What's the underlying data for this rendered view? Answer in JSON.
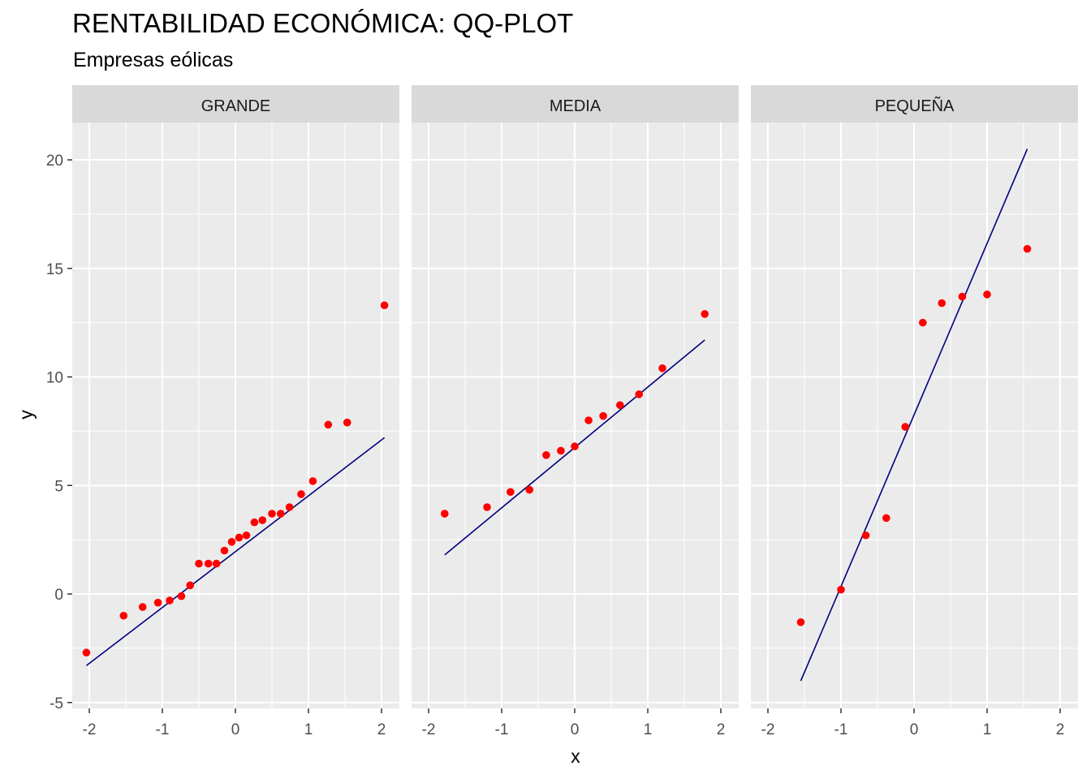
{
  "title": "RENTABILIDAD ECONÓMICA: QQ-PLOT",
  "subtitle": "Empresas eólicas",
  "colors": {
    "point": "#ff0000",
    "line": "#000080",
    "panel_bg": "#ebebeb",
    "strip_bg": "#d9d9d9",
    "grid": "#ffffff"
  },
  "chart_data": {
    "type": "scatter",
    "title": "RENTABILIDAD ECONÓMICA: QQ-PLOT",
    "subtitle": "Empresas eólicas",
    "xlabel": "x",
    "ylabel": "y",
    "grid": true,
    "shared_y": true,
    "x_ticks": [
      -2,
      -1,
      0,
      1,
      2
    ],
    "y_ticks": [
      -5,
      0,
      5,
      10,
      15,
      20
    ],
    "xlim": [
      -2.2,
      2.2
    ],
    "ylim": [
      -5.3,
      22.0
    ],
    "panels": [
      {
        "name": "GRANDE",
        "x": [
          -2.04,
          -1.53,
          -1.27,
          -1.06,
          -0.9,
          -0.74,
          -0.62,
          -0.5,
          -0.37,
          -0.26,
          -0.15,
          -0.05,
          0.05,
          0.15,
          0.26,
          0.37,
          0.5,
          0.62,
          0.74,
          0.9,
          1.06,
          1.27,
          1.53,
          2.04
        ],
        "y": [
          -2.7,
          -1.0,
          -0.6,
          -0.4,
          -0.3,
          -0.1,
          0.4,
          1.4,
          1.4,
          1.4,
          2.0,
          2.4,
          2.6,
          2.7,
          3.3,
          3.4,
          3.7,
          3.7,
          4.0,
          4.6,
          5.2,
          7.8,
          7.9,
          13.3
        ],
        "line": {
          "x": [
            -2.04,
            2.04
          ],
          "y": [
            -3.3,
            7.2
          ]
        }
      },
      {
        "name": "MEDIA",
        "x": [
          -1.78,
          -1.2,
          -0.88,
          -0.62,
          -0.39,
          -0.19,
          0.0,
          0.19,
          0.39,
          0.62,
          0.88,
          1.2,
          1.78
        ],
        "y": [
          3.7,
          4.0,
          4.7,
          4.8,
          6.4,
          6.6,
          6.8,
          8.0,
          8.2,
          8.7,
          9.2,
          10.4,
          12.9
        ],
        "line": {
          "x": [
            -1.78,
            1.78
          ],
          "y": [
            1.8,
            11.7
          ]
        }
      },
      {
        "name": "PEQUEÑA",
        "x": [
          -1.55,
          -1.0,
          -0.66,
          -0.38,
          -0.12,
          0.12,
          0.38,
          0.66,
          1.0,
          1.55
        ],
        "y": [
          -1.3,
          0.2,
          2.7,
          3.5,
          7.7,
          12.5,
          13.4,
          13.7,
          13.8,
          15.9
        ],
        "line": {
          "x": [
            -1.55,
            1.55
          ],
          "y": [
            -4.0,
            20.5
          ]
        }
      }
    ]
  }
}
